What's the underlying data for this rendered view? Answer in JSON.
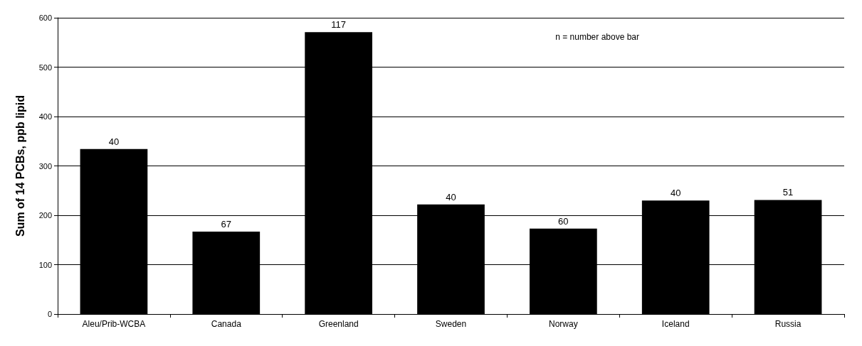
{
  "chart_data": {
    "type": "bar",
    "ylabel": "Sum of 14 PCBs, ppb lipid",
    "categories": [
      "Aleu/Prib-WCBA",
      "Canada",
      "Greenland",
      "Sweden",
      "Norway",
      "Iceland",
      "Russia"
    ],
    "values": [
      334,
      167,
      571,
      222,
      173,
      230,
      231
    ],
    "color": "#000000",
    "ylim": [
      0,
      600
    ],
    "yticks": [
      0,
      100,
      200,
      300,
      400,
      500,
      600
    ],
    "grid": "y",
    "annotations": [
      "n = number above bar",
      {
        "text": "40",
        "x": "Aleu/Prib-WCBA",
        "y": 334
      },
      {
        "text": "67",
        "x": "Canada",
        "y": 167
      },
      {
        "text": "117",
        "x": "Greenland",
        "y": 571
      },
      {
        "text": "40",
        "x": "Sweden",
        "y": 222
      },
      {
        "text": "60",
        "x": "Norway",
        "y": 173
      },
      {
        "text": "40",
        "x": "Iceland",
        "y": 230
      },
      {
        "text": "51",
        "x": "Russia",
        "y": 231
      }
    ]
  }
}
